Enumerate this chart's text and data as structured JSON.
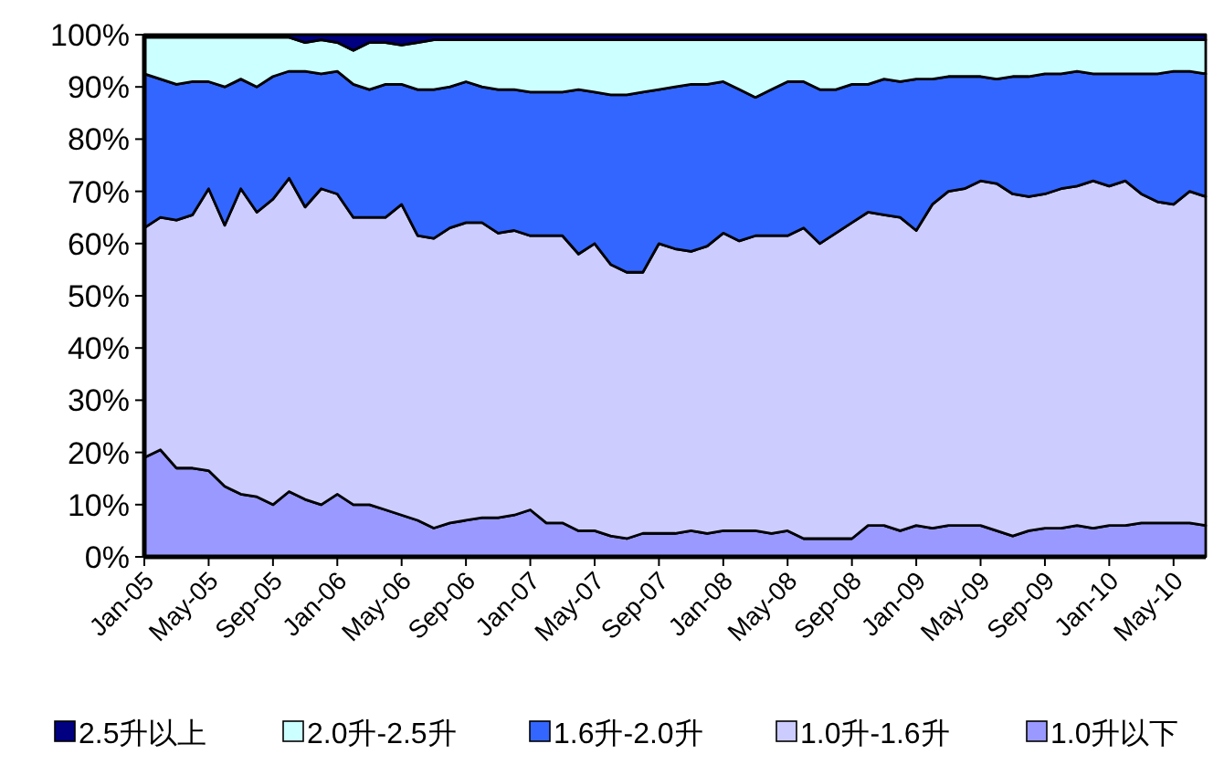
{
  "chart_data": {
    "type": "area",
    "stacked": true,
    "legend": "bottom",
    "grid": false,
    "x": [
      "2005-01",
      "2005-02",
      "2005-03",
      "2005-04",
      "2005-05",
      "2005-06",
      "2005-07",
      "2005-08",
      "2005-09",
      "2005-10",
      "2005-11",
      "2005-12",
      "2006-01",
      "2006-02",
      "2006-03",
      "2006-04",
      "2006-05",
      "2006-06",
      "2006-07",
      "2006-08",
      "2006-09",
      "2006-10",
      "2006-11",
      "2006-12",
      "2007-01",
      "2007-02",
      "2007-03",
      "2007-04",
      "2007-05",
      "2007-06",
      "2007-07",
      "2007-08",
      "2007-09",
      "2007-10",
      "2007-11",
      "2007-12",
      "2008-01",
      "2008-02",
      "2008-03",
      "2008-04",
      "2008-05",
      "2008-06",
      "2008-07",
      "2008-08",
      "2008-09",
      "2008-10",
      "2008-11",
      "2008-12",
      "2009-01",
      "2009-02",
      "2009-03",
      "2009-04",
      "2009-05",
      "2009-06",
      "2009-07",
      "2009-08",
      "2009-09",
      "2009-10",
      "2009-11",
      "2009-12",
      "2010-01",
      "2010-02",
      "2010-03",
      "2010-04",
      "2010-05",
      "2010-06",
      "2010-07"
    ],
    "xlim": [
      "2005-01",
      "2010-07"
    ],
    "xticks": [
      {
        "value": "2005-01",
        "label": "Jan-05"
      },
      {
        "value": "2005-05",
        "label": "May-05"
      },
      {
        "value": "2005-09",
        "label": "Sep-05"
      },
      {
        "value": "2006-01",
        "label": "Jan-06"
      },
      {
        "value": "2006-05",
        "label": "May-06"
      },
      {
        "value": "2006-09",
        "label": "Sep-06"
      },
      {
        "value": "2007-01",
        "label": "Jan-07"
      },
      {
        "value": "2007-05",
        "label": "May-07"
      },
      {
        "value": "2007-09",
        "label": "Sep-07"
      },
      {
        "value": "2008-01",
        "label": "Jan-08"
      },
      {
        "value": "2008-05",
        "label": "May-08"
      },
      {
        "value": "2008-09",
        "label": "Sep-08"
      },
      {
        "value": "2009-01",
        "label": "Jan-09"
      },
      {
        "value": "2009-05",
        "label": "May-09"
      },
      {
        "value": "2009-09",
        "label": "Sep-09"
      },
      {
        "value": "2010-01",
        "label": "Jan-10"
      },
      {
        "value": "2010-05",
        "label": "May-10"
      }
    ],
    "ylim": [
      0,
      100
    ],
    "yticks": [
      {
        "value": 0,
        "label": "0%"
      },
      {
        "value": 10,
        "label": "10%"
      },
      {
        "value": 20,
        "label": "20%"
      },
      {
        "value": 30,
        "label": "30%"
      },
      {
        "value": 40,
        "label": "40%"
      },
      {
        "value": 50,
        "label": "50%"
      },
      {
        "value": 60,
        "label": "60%"
      },
      {
        "value": 70,
        "label": "70%"
      },
      {
        "value": 80,
        "label": "80%"
      },
      {
        "value": 90,
        "label": "90%"
      },
      {
        "value": 100,
        "label": "100%"
      }
    ],
    "series": [
      {
        "name": "1.0升以下",
        "color": "#9999ff",
        "values": [
          19,
          20.5,
          17,
          17,
          16.5,
          13.5,
          12,
          11.5,
          10,
          12.5,
          11,
          10,
          12,
          10,
          10,
          9,
          8,
          7,
          5.5,
          6.5,
          7,
          7.5,
          7.5,
          8,
          9,
          6.5,
          6.5,
          5,
          5,
          4,
          3.5,
          4.5,
          4.5,
          4.5,
          5,
          4.5,
          5,
          5,
          5,
          4.5,
          5,
          3.5,
          3.5,
          3.5,
          3.5,
          6,
          6,
          5,
          6,
          5.5,
          6,
          6,
          6,
          5,
          4,
          5,
          5.5,
          5.5,
          6,
          5.5,
          6,
          6,
          6.5,
          6.5,
          6.5,
          6.5,
          6
        ]
      },
      {
        "name": "1.0升-1.6升",
        "color": "#ccccff",
        "values": [
          44,
          44.5,
          47.5,
          48.5,
          54,
          50,
          58.5,
          54.5,
          58.5,
          60,
          56,
          60.5,
          57.5,
          55,
          55,
          56,
          59.5,
          54.5,
          55.5,
          56.5,
          57,
          56.5,
          54.5,
          54.5,
          52.5,
          55,
          55,
          53,
          55,
          52,
          51,
          50,
          55.5,
          54.5,
          53.5,
          55,
          57,
          55.5,
          56.5,
          57,
          56.5,
          59.5,
          56.5,
          58.5,
          60.5,
          60,
          59.5,
          60,
          56.5,
          62,
          64,
          64.5,
          66,
          66.5,
          65.5,
          64,
          64,
          65,
          65,
          66.5,
          65,
          66,
          63,
          61.5,
          61,
          63.5,
          63
        ]
      },
      {
        "name": "1.6升-2.0升",
        "color": "#3366ff",
        "values": [
          29.5,
          26.5,
          26,
          25.5,
          20.5,
          26.5,
          21,
          24,
          23.5,
          20.5,
          26,
          22,
          23.5,
          25.5,
          24.5,
          25.5,
          23,
          28,
          28.5,
          27,
          27,
          26,
          27.5,
          27,
          27.5,
          27.5,
          27.5,
          31.5,
          29,
          32.5,
          34,
          34.5,
          29.5,
          31,
          32,
          31,
          29,
          29,
          26.5,
          28,
          29.5,
          28,
          29.5,
          27.5,
          26.5,
          24.5,
          26,
          26,
          29,
          24,
          22,
          21.5,
          20,
          20,
          22.5,
          23,
          23,
          22,
          22,
          20.5,
          21.5,
          20.5,
          23,
          24.5,
          25.5,
          23,
          23.5
        ]
      },
      {
        "name": "2.0升-2.5升",
        "color": "#ccffff",
        "values": [
          7,
          8,
          9,
          8.5,
          8.5,
          9.5,
          8,
          9.5,
          7.5,
          6.5,
          5.5,
          6.5,
          5.5,
          6.5,
          9,
          8,
          7.5,
          9,
          9.5,
          9,
          8,
          9,
          9.5,
          9.5,
          10,
          10,
          10,
          9.5,
          10,
          10.5,
          10.5,
          10,
          9.5,
          9,
          8.5,
          8.5,
          8,
          9.5,
          11,
          9.5,
          8,
          8,
          9.5,
          9.5,
          8.5,
          8.5,
          7.5,
          8,
          7.5,
          7.5,
          7,
          7,
          7,
          7.5,
          7,
          7,
          6.5,
          6.5,
          6,
          6.5,
          6.5,
          6.5,
          6.5,
          6.5,
          6,
          6,
          6.5
        ]
      },
      {
        "name": "2.5升以上",
        "color": "#000080",
        "values": [
          0.5,
          0.5,
          0.5,
          0.5,
          0.5,
          0.5,
          0.5,
          0.5,
          0.5,
          0.5,
          1.5,
          1,
          1.5,
          3,
          1.5,
          1.5,
          2,
          1.5,
          1,
          1,
          1,
          1,
          1,
          1,
          1,
          1,
          1,
          1,
          1,
          1,
          1,
          1,
          1,
          1,
          1,
          1,
          1,
          1,
          1,
          1,
          1,
          1,
          1,
          1,
          1,
          1,
          1,
          1,
          1,
          1,
          1,
          1,
          1,
          1,
          1,
          1,
          1,
          1,
          1,
          1,
          1,
          1,
          1,
          1,
          1,
          1,
          1
        ]
      }
    ]
  }
}
